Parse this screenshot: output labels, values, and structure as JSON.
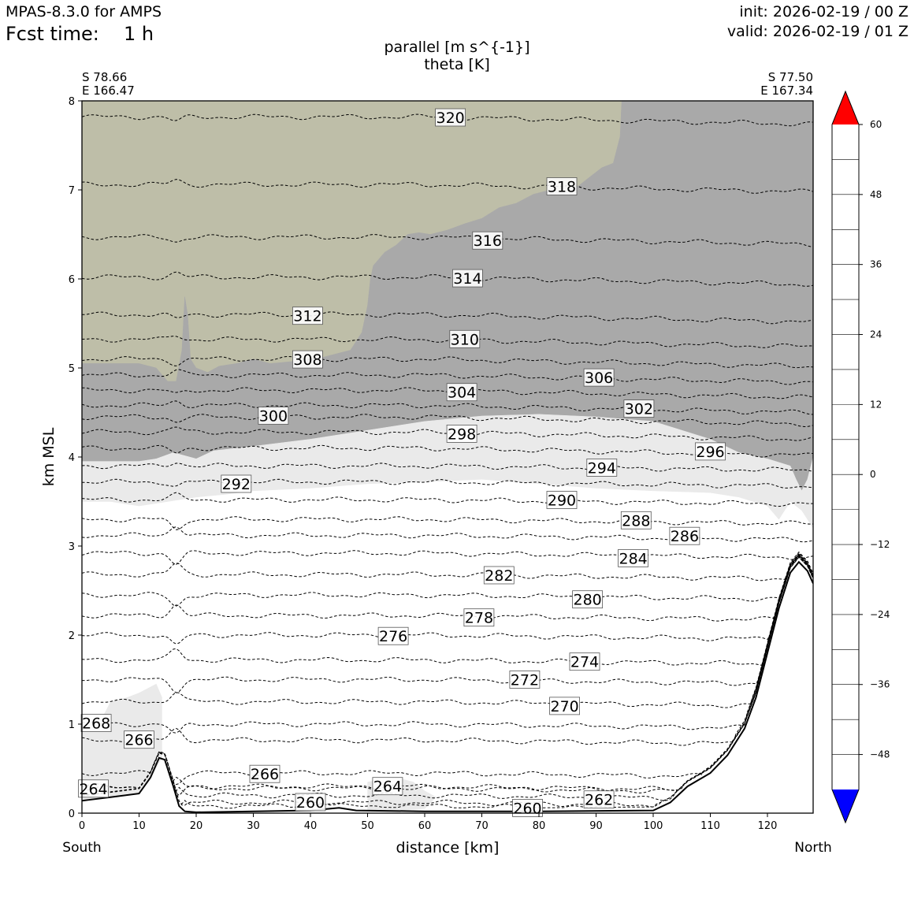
{
  "header": {
    "model": "MPAS-8.3.0 for AMPS",
    "fcst_label": "Fcst time:",
    "fcst_value": "1 h",
    "init": "init: 2026-02-19 / 00 Z",
    "valid": "valid: 2026-02-19 / 01 Z"
  },
  "endpoints": {
    "left_lat": "S 78.66",
    "left_lon": "E 166.47",
    "right_lat": "S 77.50",
    "right_lon": "E 167.34",
    "left_dir": "South",
    "right_dir": "North"
  },
  "chart_data": {
    "type": "cross-section",
    "title": [
      "parallel [m s^{-1}]",
      "theta [K]"
    ],
    "xlabel": "distance [km]",
    "ylabel": "km MSL",
    "xlim": [
      0,
      128
    ],
    "ylim": [
      0,
      8
    ],
    "xticks": [
      0,
      10,
      20,
      30,
      40,
      50,
      60,
      70,
      80,
      90,
      100,
      110,
      120
    ],
    "yticks": [
      0,
      1,
      2,
      3,
      4,
      5,
      6,
      7,
      8
    ],
    "grid": false,
    "terrain": [
      [
        0,
        0.14
      ],
      [
        5,
        0.18
      ],
      [
        10,
        0.22
      ],
      [
        12,
        0.4
      ],
      [
        13.5,
        0.62
      ],
      [
        14.5,
        0.6
      ],
      [
        16,
        0.3
      ],
      [
        17,
        0.08
      ],
      [
        18,
        0.02
      ],
      [
        20,
        0.01
      ],
      [
        30,
        0.02
      ],
      [
        40,
        0.03
      ],
      [
        45,
        0.06
      ],
      [
        48,
        0.03
      ],
      [
        60,
        0.02
      ],
      [
        70,
        0.02
      ],
      [
        80,
        0.02
      ],
      [
        100,
        0.03
      ],
      [
        103,
        0.12
      ],
      [
        106,
        0.3
      ],
      [
        110,
        0.45
      ],
      [
        113,
        0.65
      ],
      [
        116,
        0.95
      ],
      [
        118,
        1.3
      ],
      [
        120,
        1.8
      ],
      [
        122,
        2.3
      ],
      [
        124,
        2.7
      ],
      [
        125.5,
        2.82
      ],
      [
        127,
        2.72
      ],
      [
        128,
        2.58
      ]
    ],
    "fill_regions": [
      {
        "level": "18-24",
        "color": "#BEBEA8",
        "polygon": [
          [
            0,
            8
          ],
          [
            94.5,
            8
          ],
          [
            94.2,
            7.6
          ],
          [
            93,
            7.3
          ],
          [
            91,
            7.25
          ],
          [
            89,
            7.15
          ],
          [
            87,
            7.05
          ],
          [
            85,
            6.98
          ],
          [
            82,
            7.0
          ],
          [
            79,
            6.95
          ],
          [
            76,
            6.85
          ],
          [
            73,
            6.8
          ],
          [
            70,
            6.68
          ],
          [
            67,
            6.62
          ],
          [
            64,
            6.55
          ],
          [
            61,
            6.5
          ],
          [
            59,
            6.52
          ],
          [
            57,
            6.5
          ],
          [
            55,
            6.38
          ],
          [
            53,
            6.3
          ],
          [
            51,
            6.15
          ],
          [
            50.5,
            6.0
          ],
          [
            50,
            5.7
          ],
          [
            49,
            5.4
          ],
          [
            47,
            5.2
          ],
          [
            44,
            5.15
          ],
          [
            41,
            5.1
          ],
          [
            38,
            5.08
          ],
          [
            33,
            5.05
          ],
          [
            30,
            5.1
          ],
          [
            27,
            5.05
          ],
          [
            24,
            5.02
          ],
          [
            22,
            4.95
          ],
          [
            20,
            5.0
          ],
          [
            19,
            5.1
          ],
          [
            18.5,
            5.6
          ],
          [
            18,
            5.8
          ],
          [
            17.5,
            5.2
          ],
          [
            16.5,
            4.85
          ],
          [
            15,
            4.85
          ],
          [
            13,
            5.0
          ],
          [
            10,
            5.05
          ],
          [
            0,
            5.05
          ]
        ]
      },
      {
        "level": "12-18",
        "color": "#A9A9A9",
        "polygon": [
          [
            0,
            5.05
          ],
          [
            10,
            5.05
          ],
          [
            13,
            5.0
          ],
          [
            15,
            4.85
          ],
          [
            16.5,
            4.85
          ],
          [
            17.5,
            5.2
          ],
          [
            18,
            5.8
          ],
          [
            18.5,
            5.6
          ],
          [
            19,
            5.1
          ],
          [
            20,
            5.0
          ],
          [
            22,
            4.95
          ],
          [
            24,
            5.02
          ],
          [
            27,
            5.05
          ],
          [
            30,
            5.1
          ],
          [
            33,
            5.05
          ],
          [
            38,
            5.08
          ],
          [
            41,
            5.1
          ],
          [
            44,
            5.15
          ],
          [
            47,
            5.2
          ],
          [
            49,
            5.4
          ],
          [
            50,
            5.7
          ],
          [
            50.5,
            6.0
          ],
          [
            51,
            6.15
          ],
          [
            53,
            6.3
          ],
          [
            55,
            6.38
          ],
          [
            57,
            6.5
          ],
          [
            59,
            6.52
          ],
          [
            61,
            6.5
          ],
          [
            64,
            6.55
          ],
          [
            67,
            6.62
          ],
          [
            70,
            6.68
          ],
          [
            73,
            6.8
          ],
          [
            76,
            6.85
          ],
          [
            79,
            6.95
          ],
          [
            82,
            7.0
          ],
          [
            85,
            6.98
          ],
          [
            87,
            7.05
          ],
          [
            89,
            7.15
          ],
          [
            91,
            7.25
          ],
          [
            93,
            7.3
          ],
          [
            94.2,
            7.6
          ],
          [
            94.5,
            8
          ],
          [
            128,
            8
          ],
          [
            128,
            4.0
          ],
          [
            127,
            3.75
          ],
          [
            126,
            3.62
          ],
          [
            125,
            3.75
          ],
          [
            124,
            3.9
          ],
          [
            120,
            3.98
          ],
          [
            115,
            4.05
          ],
          [
            110,
            4.2
          ],
          [
            100,
            4.4
          ],
          [
            90,
            4.45
          ],
          [
            80,
            4.48
          ],
          [
            70,
            4.46
          ],
          [
            60,
            4.4
          ],
          [
            50,
            4.3
          ],
          [
            40,
            4.2
          ],
          [
            30,
            4.12
          ],
          [
            23,
            4.07
          ],
          [
            20,
            3.98
          ],
          [
            16,
            4.05
          ],
          [
            13,
            3.98
          ],
          [
            10,
            3.95
          ],
          [
            0,
            3.95
          ]
        ]
      },
      {
        "level": "6-12",
        "color": "#EAEAEA",
        "polygon": [
          [
            0,
            3.95
          ],
          [
            10,
            3.95
          ],
          [
            13,
            3.98
          ],
          [
            16,
            4.05
          ],
          [
            20,
            3.98
          ],
          [
            23,
            4.07
          ],
          [
            30,
            4.12
          ],
          [
            40,
            4.2
          ],
          [
            50,
            4.3
          ],
          [
            60,
            4.4
          ],
          [
            70,
            4.46
          ],
          [
            80,
            4.48
          ],
          [
            90,
            4.45
          ],
          [
            100,
            4.4
          ],
          [
            110,
            4.2
          ],
          [
            115,
            4.05
          ],
          [
            120,
            3.98
          ],
          [
            124,
            3.9
          ],
          [
            125,
            3.75
          ],
          [
            126,
            3.62
          ],
          [
            127,
            3.75
          ],
          [
            128,
            4.0
          ],
          [
            128,
            3.2
          ],
          [
            126,
            3.4
          ],
          [
            124,
            3.5
          ],
          [
            122,
            3.3
          ],
          [
            120,
            3.45
          ],
          [
            115,
            3.55
          ],
          [
            110,
            3.6
          ],
          [
            100,
            3.62
          ],
          [
            90,
            3.65
          ],
          [
            80,
            3.7
          ],
          [
            70,
            3.75
          ],
          [
            60,
            3.72
          ],
          [
            50,
            3.7
          ],
          [
            40,
            3.65
          ],
          [
            30,
            3.62
          ],
          [
            25,
            3.58
          ],
          [
            20,
            3.55
          ],
          [
            15,
            3.5
          ],
          [
            10,
            3.45
          ],
          [
            5,
            3.5
          ],
          [
            0,
            3.5
          ]
        ]
      },
      {
        "level": "6-12",
        "color": "#EAEAEA",
        "polygon": [
          [
            0,
            0.95
          ],
          [
            3,
            1.0
          ],
          [
            5,
            1.25
          ],
          [
            8,
            1.3
          ],
          [
            10,
            1.35
          ],
          [
            13,
            1.45
          ],
          [
            14,
            1.3
          ],
          [
            14,
            0.62
          ],
          [
            12,
            0.4
          ],
          [
            10,
            0.22
          ],
          [
            5,
            0.18
          ],
          [
            0,
            0.14
          ]
        ]
      },
      {
        "level": "6-12",
        "color": "#EAEAEA",
        "polygon": [
          [
            50,
            0.35
          ],
          [
            55,
            0.4
          ],
          [
            58,
            0.35
          ],
          [
            60,
            0.25
          ],
          [
            62,
            0.18
          ],
          [
            60,
            0.05
          ],
          [
            55,
            0.03
          ],
          [
            50,
            0.03
          ]
        ]
      }
    ],
    "theta_contours": [
      {
        "k": 320,
        "base": 7.82,
        "label_x": 64.5
      },
      {
        "k": 318,
        "base": 7.06,
        "label_x": 84.0
      },
      {
        "k": 316,
        "base": 6.47,
        "label_x": 71.0
      },
      {
        "k": 314,
        "base": 6.02,
        "label_x": 67.5
      },
      {
        "k": 312,
        "base": 5.6,
        "label_x": 39.5
      },
      {
        "k": 310,
        "base": 5.32,
        "label_x": 67.0
      },
      {
        "k": 308,
        "base": 5.1,
        "label_x": 39.5
      },
      {
        "k": 306,
        "base": 4.92,
        "label_x": 90.5
      },
      {
        "k": 304,
        "base": 4.75,
        "label_x": 66.5
      },
      {
        "k": 302,
        "base": 4.58,
        "label_x": 97.5
      },
      {
        "k": 300,
        "base": 4.45,
        "label_x": 33.5
      },
      {
        "k": 298,
        "base": 4.28,
        "label_x": 66.5
      },
      {
        "k": 296,
        "base": 4.1,
        "label_x": 110.0
      },
      {
        "k": 294,
        "base": 3.9,
        "label_x": 91.0
      },
      {
        "k": 292,
        "base": 3.72,
        "label_x": 27.0
      },
      {
        "k": 290,
        "base": 3.52,
        "label_x": 84.0
      },
      {
        "k": 288,
        "base": 3.3,
        "label_x": 97.0
      },
      {
        "k": 286,
        "base": 3.12,
        "label_x": 105.5
      },
      {
        "k": 284,
        "base": 2.92,
        "label_x": 96.5
      },
      {
        "k": 282,
        "base": 2.68,
        "label_x": 73.0
      },
      {
        "k": 280,
        "base": 2.45,
        "label_x": 88.5
      },
      {
        "k": 278,
        "base": 2.22,
        "label_x": 69.5
      },
      {
        "k": 276,
        "base": 2.0,
        "label_x": 54.5
      },
      {
        "k": 274,
        "base": 1.72,
        "label_x": 88.0
      },
      {
        "k": 272,
        "base": 1.5,
        "label_x": 77.5
      },
      {
        "k": 270,
        "base": 1.25,
        "label_x": 84.5
      },
      {
        "k": 268,
        "base": 1.0,
        "label_x": 2.5
      },
      {
        "k": 266,
        "base": 0.82,
        "label_x": 10.0
      },
      {
        "k": 266,
        "base": 0.45,
        "label_x": 32.0
      },
      {
        "k": 264,
        "base": 0.28,
        "label_x": 2.0
      },
      {
        "k": 264,
        "base": 0.3,
        "label_x": 53.5
      },
      {
        "k": 262,
        "base": 0.2,
        "label_x": 90.5
      },
      {
        "k": 260,
        "base": 0.12,
        "label_x": 40.0
      },
      {
        "k": 260,
        "base": 0.08,
        "label_x": 78.0
      }
    ],
    "colorbar": {
      "levels": [
        -54,
        -48,
        -42,
        -36,
        -30,
        -24,
        -18,
        -12,
        -6,
        0,
        6,
        12,
        18,
        24,
        30,
        36,
        42,
        48,
        54
      ],
      "colors": [
        "#0000FF",
        "#00CCCC",
        "#00E068",
        "#1EFF1E",
        "#66FF66",
        "#A8FFA8",
        "#DAFFDA",
        "#F2FFF2",
        "#FFFFFF",
        "#FFFFFF",
        "#EAEAEA",
        "#A9A9A9",
        "#BEBEA8",
        "#FFFFAA",
        "#FFFF77",
        "#FFFF33",
        "#FFE866",
        "#FF7070",
        "#FF0000"
      ],
      "ticks": [
        "60",
        "48",
        "36",
        "24",
        "12",
        "0",
        "−12",
        "−24",
        "−36",
        "−48"
      ],
      "extend_low_color": "#0000FF",
      "extend_high_color": "#FF0000"
    }
  }
}
